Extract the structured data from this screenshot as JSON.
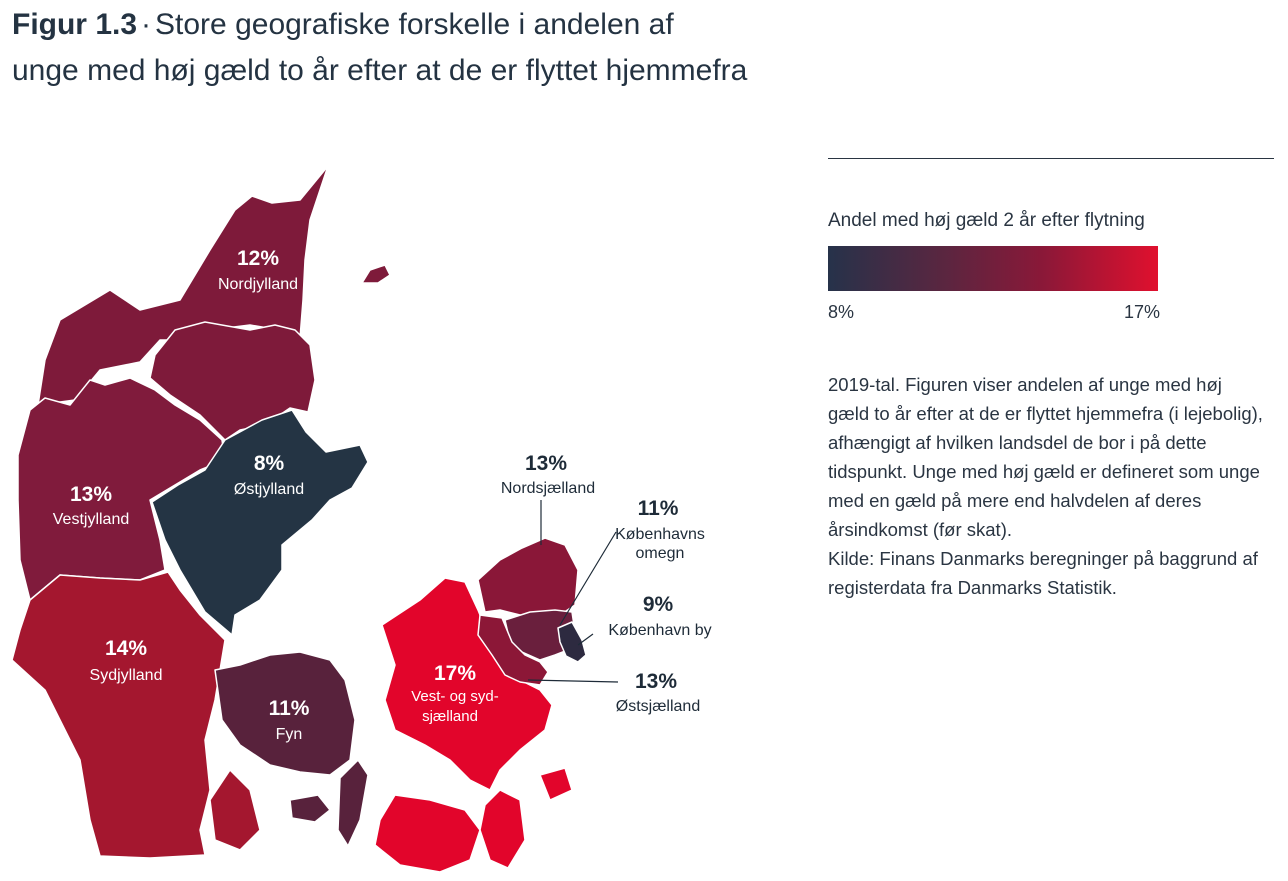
{
  "figure": {
    "label": "Figur 1.3",
    "separator": "·",
    "title_line1": "Store geografiske forskelle i andelen af",
    "title_line2": "unge med høj gæld to år efter at de er flyttet hjemmefra"
  },
  "legend": {
    "title": "Andel med høj gæld 2 år efter flytning",
    "min_label": "8%",
    "max_label": "17%",
    "min_value": 8,
    "max_value": 17,
    "color_low": "#26324a",
    "color_high": "#e0102e"
  },
  "note": {
    "text": "2019-tal. Figuren viser andelen af unge med høj gæld to år efter at de er flyttet hjemmefra (i lejebolig), afhængigt af hvilken landsdel de bor i på dette tidspunkt. Unge med høj gæld er defineret som unge med en gæld på mere end halvdelen af deres årsindkomst (før skat).",
    "source": "Kilde: Finans Danmarks beregninger på baggrund af registerdata fra Danmarks Statistik."
  },
  "regions": [
    {
      "id": "nordjylland",
      "name": "Nordjylland",
      "value": 12,
      "label": "12%",
      "color": "#7e1a3a"
    },
    {
      "id": "vestjylland",
      "name": "Vestjylland",
      "value": 13,
      "label": "13%",
      "color": "#801b3c"
    },
    {
      "id": "ostjylland",
      "name": "Østjylland",
      "value": 8,
      "label": "8%",
      "color": "#243444"
    },
    {
      "id": "sydjylland",
      "name": "Sydjylland",
      "value": 14,
      "label": "14%",
      "color": "#a4172f"
    },
    {
      "id": "fyn",
      "name": "Fyn",
      "value": 11,
      "label": "11%",
      "color": "#58223c"
    },
    {
      "id": "vestsjaelland",
      "name": "Vest- og sydsjælland",
      "value": 17,
      "label": "17%",
      "color": "#e2052b"
    },
    {
      "id": "nordsjaelland",
      "name": "Nordsjælland",
      "value": 13,
      "label": "13%",
      "color": "#8a1738"
    },
    {
      "id": "kbh-omegn",
      "name": "Københavns omegn",
      "value": 11,
      "label": "11%",
      "color": "#6a1f3d"
    },
    {
      "id": "kbh-by",
      "name": "København by",
      "value": 9,
      "label": "9%",
      "color": "#2d2a40"
    },
    {
      "id": "ostsjaelland",
      "name": "Østsjælland",
      "value": 13,
      "label": "13%",
      "color": "#8c1737"
    }
  ]
}
